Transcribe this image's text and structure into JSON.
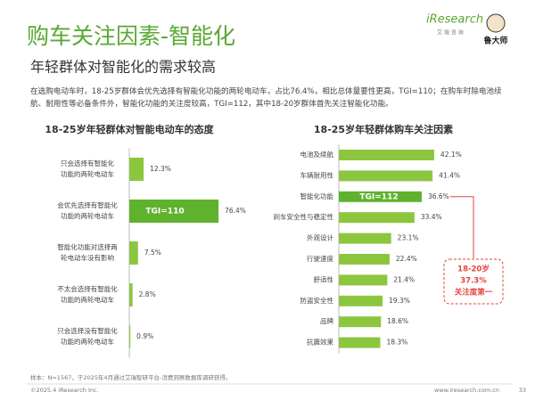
{
  "header": {
    "title": "购车关注因素-智能化",
    "subtitle": "年轻群体对智能化的需求较高",
    "logo_main": "iResearch",
    "logo_sub": "艾 瑞 咨 询",
    "partner": "鲁大师"
  },
  "paragraph": "在选购电动车时，18-25岁群体会优先选择有智能化功能的两轮电动车，占比76.4%，相比总体量要性更高，TGI=110；在购车时除电池续航、耐用性等必备条件外，智能化功能的关注度较高，TGI=112，其中18-20岁群体首先关注智能化功能。",
  "footer": {
    "source": "样本：N=1567，于2025年4月通过艾瑞智研平台-消费洞察数据库调研获得。",
    "copyright": "©2025.4 iResearch Inc.",
    "url": "www.iresearch.com.cn",
    "page": "33"
  },
  "chart_data": [
    {
      "type": "bar",
      "orientation": "horizontal",
      "title": "18-25岁年轻群体对智能电动车的态度",
      "categories": [
        [
          "只会选择有智能化",
          "功能的两轮电动车"
        ],
        [
          "会优先选择有智能化",
          "功能的两轮电动车"
        ],
        [
          "智能化功能对选择两",
          "轮电动车没有影响"
        ],
        [
          "不太会选择有智能化",
          "功能的两轮电动车"
        ],
        [
          "只会选择没有智能化",
          "功能的两轮电动车"
        ]
      ],
      "values": [
        12.3,
        76.4,
        7.5,
        2.8,
        0.9
      ],
      "value_labels": [
        "12.3%",
        "76.4%",
        "7.5%",
        "2.8%",
        "0.9%"
      ],
      "color": "#8cc63f",
      "highlight_color": "#5fb22d",
      "highlight_index": 1,
      "annotation": "TGI=110"
    },
    {
      "type": "bar",
      "orientation": "horizontal",
      "title": "18-25岁年轻群体购车关注因素",
      "categories": [
        "电池及续航",
        "车辆耐用性",
        "智能化功能",
        "刹车安全性与稳定性",
        "外观设计",
        "行驶速度",
        "舒适性",
        "防盗安全性",
        "品牌",
        "抗震效果"
      ],
      "values": [
        42.1,
        41.4,
        36.6,
        33.4,
        23.1,
        22.4,
        21.4,
        19.3,
        18.6,
        18.3
      ],
      "value_labels": [
        "42.1%",
        "41.4%",
        "36.6%",
        "33.4%",
        "23.1%",
        "22.4%",
        "21.4%",
        "19.3%",
        "18.6%",
        "18.3%"
      ],
      "color": "#8cc63f",
      "highlight_color": "#5fb22d",
      "highlight_index": 2,
      "annotation": "TGI=112",
      "callout": [
        "18-20岁",
        "37.3%",
        "关注度第一"
      ],
      "callout_color": "#e2463b"
    }
  ]
}
